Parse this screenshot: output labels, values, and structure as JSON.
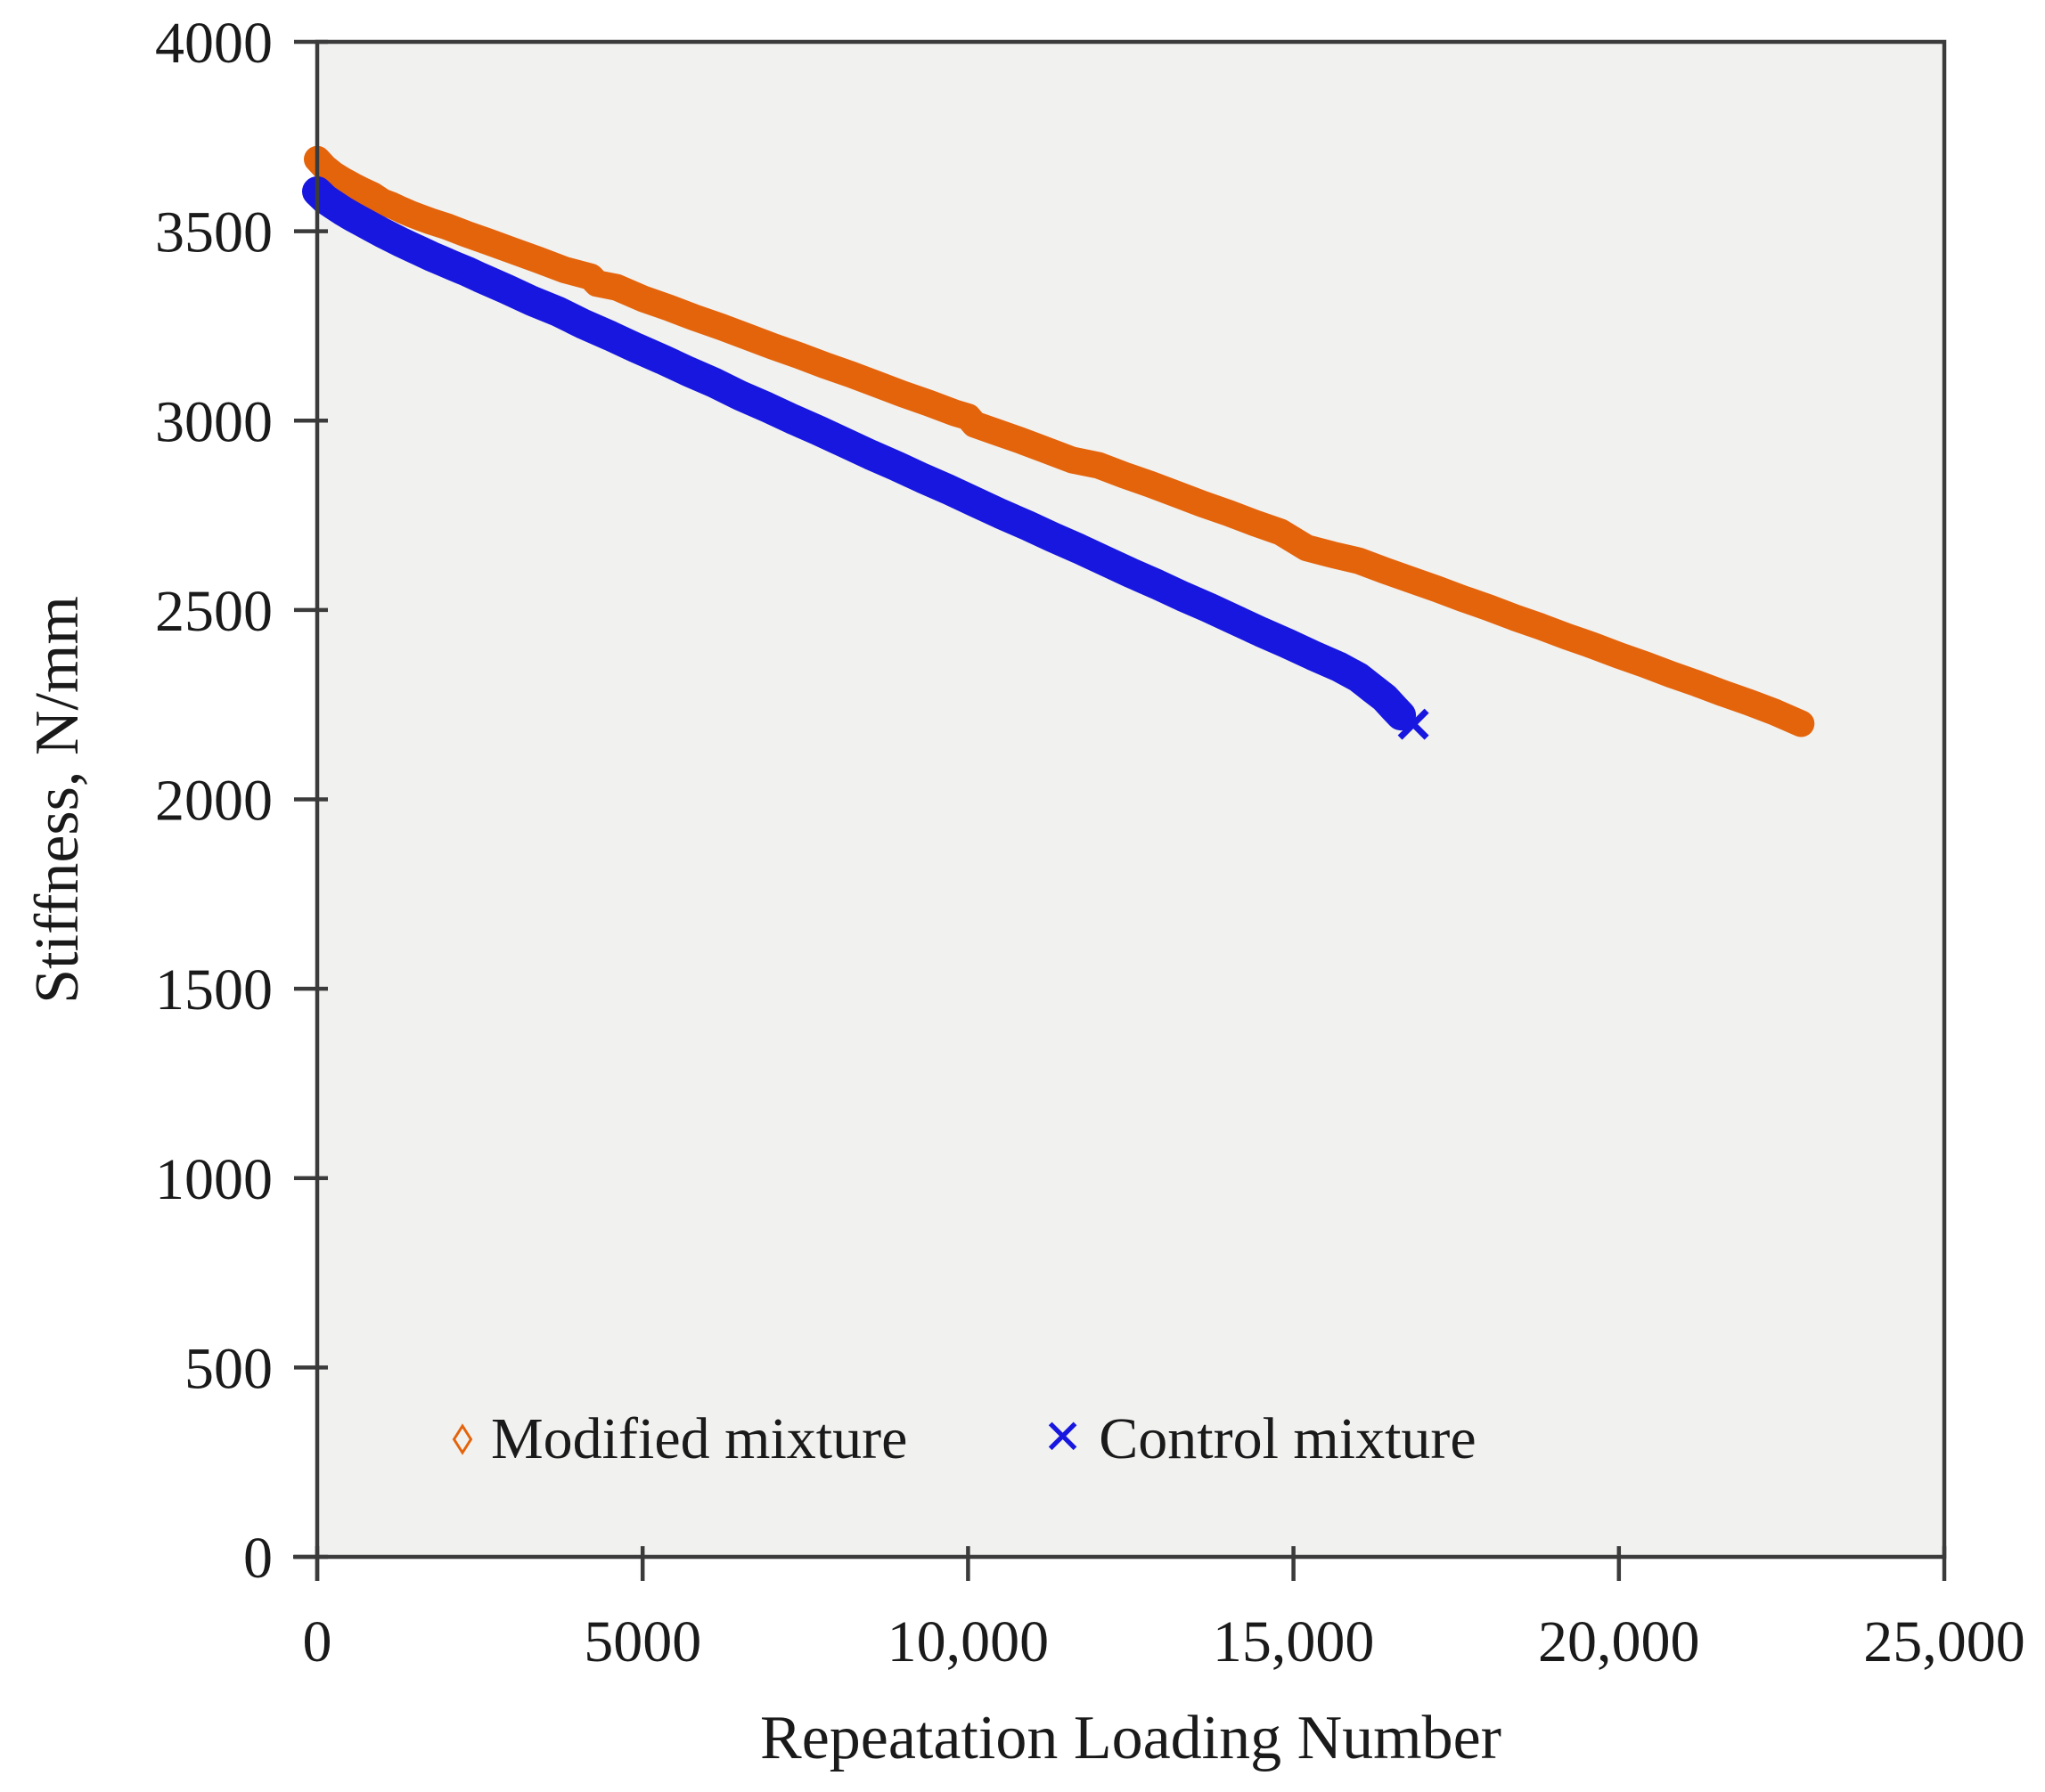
{
  "figure": {
    "background": "#ffffff",
    "plot_background": "#f1f1f0",
    "frame_color": "#3b3b3b",
    "text_color": "#1a1a1a"
  },
  "chart_data": {
    "type": "scatter",
    "title": "",
    "xlabel": "Repeatation Loading Number",
    "ylabel": "Stiffness, N/mm",
    "xlim": [
      0,
      25000
    ],
    "ylim": [
      0,
      4000
    ],
    "grid": false,
    "legend_position": "bottom-inside",
    "x_ticks": [
      0,
      5000,
      10000,
      15000,
      20000,
      25000
    ],
    "x_tick_labels": [
      "0",
      "5000",
      "10,000",
      "15,000",
      "20,000",
      "25,000"
    ],
    "y_ticks": [
      0,
      500,
      1000,
      1500,
      2000,
      2500,
      3000,
      3500,
      4000
    ],
    "y_tick_labels": [
      "0",
      "500",
      "1000",
      "1500",
      "2000",
      "2500",
      "3000",
      "3500",
      "4000"
    ],
    "series": [
      {
        "name": "Modified mixture",
        "color": "#e4640c",
        "marker": "diamond-open",
        "points": [
          [
            0,
            3690
          ],
          [
            120,
            3668
          ],
          [
            250,
            3650
          ],
          [
            400,
            3634
          ],
          [
            550,
            3620
          ],
          [
            700,
            3607
          ],
          [
            850,
            3595
          ],
          [
            1000,
            3578
          ],
          [
            1150,
            3568
          ],
          [
            1300,
            3556
          ],
          [
            1450,
            3545
          ],
          [
            1600,
            3535
          ],
          [
            1750,
            3526
          ],
          [
            2000,
            3512
          ],
          [
            2300,
            3492
          ],
          [
            2600,
            3474
          ],
          [
            3000,
            3449
          ],
          [
            3400,
            3424
          ],
          [
            3800,
            3398
          ],
          [
            4200,
            3380
          ],
          [
            4300,
            3362
          ],
          [
            4600,
            3352
          ],
          [
            5000,
            3322
          ],
          [
            5400,
            3298
          ],
          [
            5800,
            3272
          ],
          [
            6200,
            3248
          ],
          [
            6600,
            3222
          ],
          [
            7000,
            3196
          ],
          [
            7400,
            3172
          ],
          [
            7800,
            3146
          ],
          [
            8200,
            3122
          ],
          [
            8600,
            3096
          ],
          [
            9000,
            3070
          ],
          [
            9400,
            3046
          ],
          [
            9800,
            3020
          ],
          [
            10000,
            3010
          ],
          [
            10100,
            2990
          ],
          [
            10400,
            2972
          ],
          [
            10800,
            2948
          ],
          [
            11200,
            2922
          ],
          [
            11600,
            2896
          ],
          [
            12000,
            2882
          ],
          [
            12400,
            2856
          ],
          [
            12800,
            2832
          ],
          [
            13200,
            2806
          ],
          [
            13600,
            2780
          ],
          [
            14000,
            2756
          ],
          [
            14400,
            2730
          ],
          [
            14800,
            2706
          ],
          [
            15200,
            2664
          ],
          [
            15600,
            2646
          ],
          [
            16000,
            2630
          ],
          [
            16400,
            2604
          ],
          [
            16800,
            2580
          ],
          [
            17200,
            2556
          ],
          [
            17600,
            2530
          ],
          [
            18000,
            2506
          ],
          [
            18400,
            2480
          ],
          [
            18800,
            2456
          ],
          [
            19200,
            2430
          ],
          [
            19600,
            2406
          ],
          [
            20000,
            2380
          ],
          [
            20400,
            2356
          ],
          [
            20800,
            2330
          ],
          [
            21200,
            2306
          ],
          [
            21600,
            2280
          ],
          [
            22000,
            2256
          ],
          [
            22400,
            2230
          ],
          [
            22800,
            2200
          ]
        ]
      },
      {
        "name": "Control mixture",
        "color": "#1717e0",
        "marker": "x",
        "points": [
          [
            0,
            3605
          ],
          [
            120,
            3585
          ],
          [
            250,
            3570
          ],
          [
            400,
            3553
          ],
          [
            550,
            3538
          ],
          [
            700,
            3524
          ],
          [
            850,
            3510
          ],
          [
            1000,
            3496
          ],
          [
            1150,
            3483
          ],
          [
            1300,
            3470
          ],
          [
            1450,
            3458
          ],
          [
            1600,
            3446
          ],
          [
            1750,
            3434
          ],
          [
            1900,
            3423
          ],
          [
            2100,
            3408
          ],
          [
            2300,
            3394
          ],
          [
            2500,
            3378
          ],
          [
            2900,
            3348
          ],
          [
            3300,
            3316
          ],
          [
            3700,
            3288
          ],
          [
            4100,
            3254
          ],
          [
            4500,
            3224
          ],
          [
            4900,
            3192
          ],
          [
            5300,
            3162
          ],
          [
            5700,
            3130
          ],
          [
            6100,
            3100
          ],
          [
            6500,
            3066
          ],
          [
            6900,
            3036
          ],
          [
            7300,
            3004
          ],
          [
            7700,
            2974
          ],
          [
            8100,
            2942
          ],
          [
            8500,
            2910
          ],
          [
            8900,
            2880
          ],
          [
            9300,
            2848
          ],
          [
            9700,
            2818
          ],
          [
            10100,
            2786
          ],
          [
            10500,
            2754
          ],
          [
            10900,
            2724
          ],
          [
            11300,
            2692
          ],
          [
            11700,
            2662
          ],
          [
            12100,
            2630
          ],
          [
            12500,
            2598
          ],
          [
            12900,
            2568
          ],
          [
            13300,
            2536
          ],
          [
            13700,
            2506
          ],
          [
            14100,
            2474
          ],
          [
            14500,
            2442
          ],
          [
            14900,
            2412
          ],
          [
            15300,
            2380
          ],
          [
            15700,
            2350
          ],
          [
            16000,
            2322
          ],
          [
            16200,
            2295
          ],
          [
            16400,
            2268
          ],
          [
            16550,
            2240
          ],
          [
            16650,
            2222
          ]
        ]
      }
    ]
  }
}
